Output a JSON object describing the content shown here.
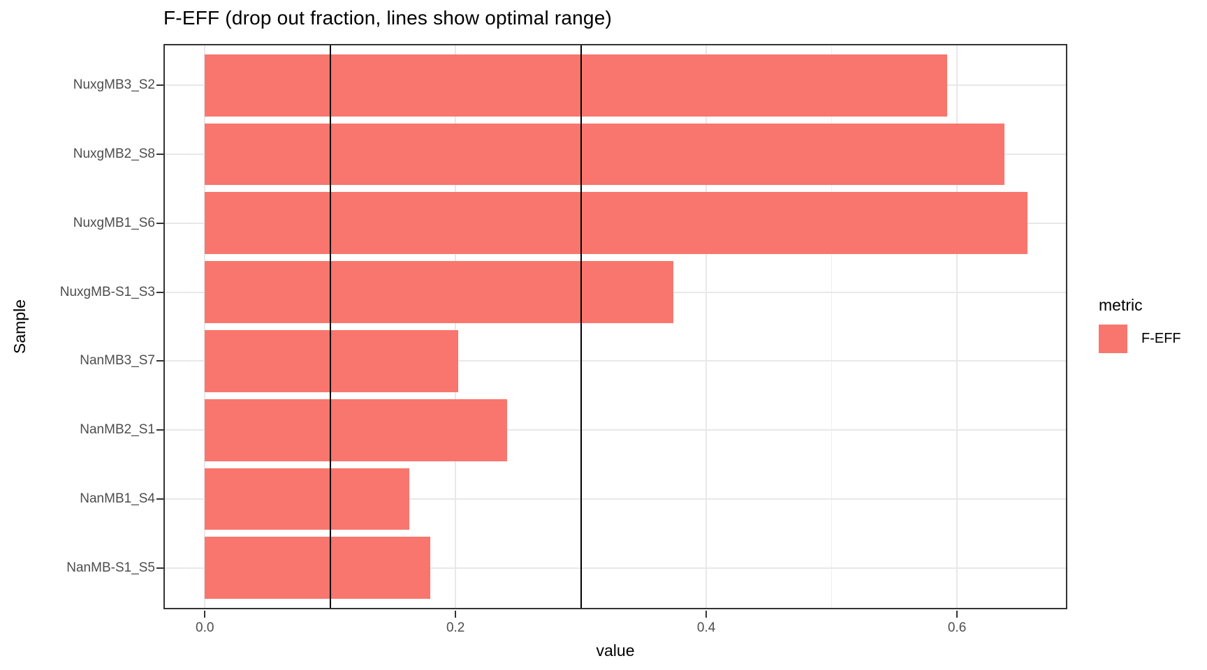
{
  "chart_data": {
    "type": "bar",
    "orientation": "horizontal",
    "title": "F-EFF (drop out fraction, lines show optimal range)",
    "xlabel": "value",
    "ylabel": "Sample",
    "categories_top_to_bottom": [
      "NuxgMB3_S2",
      "NuxgMB2_S8",
      "NuxgMB1_S6",
      "NuxgMB-S1_S3",
      "NanMB3_S7",
      "NanMB2_S1",
      "NanMB1_S4",
      "NanMB-S1_S5"
    ],
    "series": [
      {
        "name": "F-EFF",
        "values": [
          0.592,
          0.638,
          0.656,
          0.374,
          0.202,
          0.241,
          0.163,
          0.18
        ]
      }
    ],
    "xlim": [
      -0.033,
      0.688
    ],
    "x_major_ticks": [
      0.0,
      0.2,
      0.4,
      0.6
    ],
    "x_tick_labels": [
      "0.0",
      "0.2",
      "0.4",
      "0.6"
    ],
    "x_minor_gridlines": [
      0.1,
      0.3,
      0.5
    ],
    "vlines": [
      0.1,
      0.3
    ],
    "grid": true,
    "legend": {
      "title": "metric",
      "position": "right",
      "items": [
        {
          "label": "F-EFF",
          "color": "#F8766D"
        }
      ]
    }
  },
  "style": {
    "bar_color": "#F8766D",
    "vline_color": "#000000",
    "major_grid_color": "#E8E8E8",
    "minor_grid_color": "#EFEFEF",
    "panel_border_color": "#333333",
    "tick_label_color": "#4D4D4D"
  }
}
